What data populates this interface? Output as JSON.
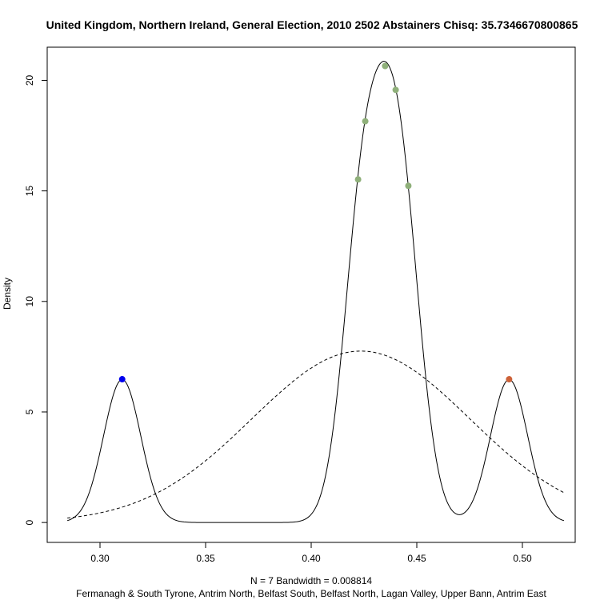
{
  "chart_data": {
    "type": "line",
    "title": "United Kingdom, Northern Ireland, General Election, 2010 2502 Abstainers Chisq: 35.7346670800865",
    "ylabel": "Density",
    "xlabel": "N = 7   Bandwidth = 0.008814",
    "subtitle": "Fermanagh & South Tyrone, Antrim North, Belfast South, Belfast North, Lagan Valley, Upper Bann, Antrim East",
    "xlim": [
      0.275,
      0.525
    ],
    "ylim": [
      -0.9,
      21.5
    ],
    "x_ticks": [
      0.3,
      0.35,
      0.4,
      0.45,
      0.5
    ],
    "x_tick_labels": [
      "0.30",
      "0.35",
      "0.40",
      "0.45",
      "0.50"
    ],
    "y_ticks": [
      0,
      5,
      10,
      15,
      20
    ],
    "y_tick_labels": [
      "0",
      "5",
      "10",
      "15",
      "20"
    ],
    "grid": false,
    "kde": {
      "bandwidth": 0.008814,
      "x_range": [
        0.2845,
        0.5197
      ],
      "style": "solid",
      "color": "#000000"
    },
    "normal_curve": {
      "mean": 0.4235,
      "sd": 0.05145,
      "style": "dashed",
      "color": "#000000"
    },
    "points": [
      {
        "x": 0.3105,
        "y": 6.48,
        "color": "#0000ee"
      },
      {
        "x": 0.4222,
        "y": 15.52,
        "color": "#8fb07a"
      },
      {
        "x": 0.4256,
        "y": 18.15,
        "color": "#8fb07a"
      },
      {
        "x": 0.435,
        "y": 20.65,
        "color": "#8fb07a"
      },
      {
        "x": 0.44,
        "y": 19.57,
        "color": "#8fb07a"
      },
      {
        "x": 0.446,
        "y": 15.23,
        "color": "#8fb07a"
      },
      {
        "x": 0.4937,
        "y": 6.48,
        "color": "#cd6239"
      }
    ]
  }
}
